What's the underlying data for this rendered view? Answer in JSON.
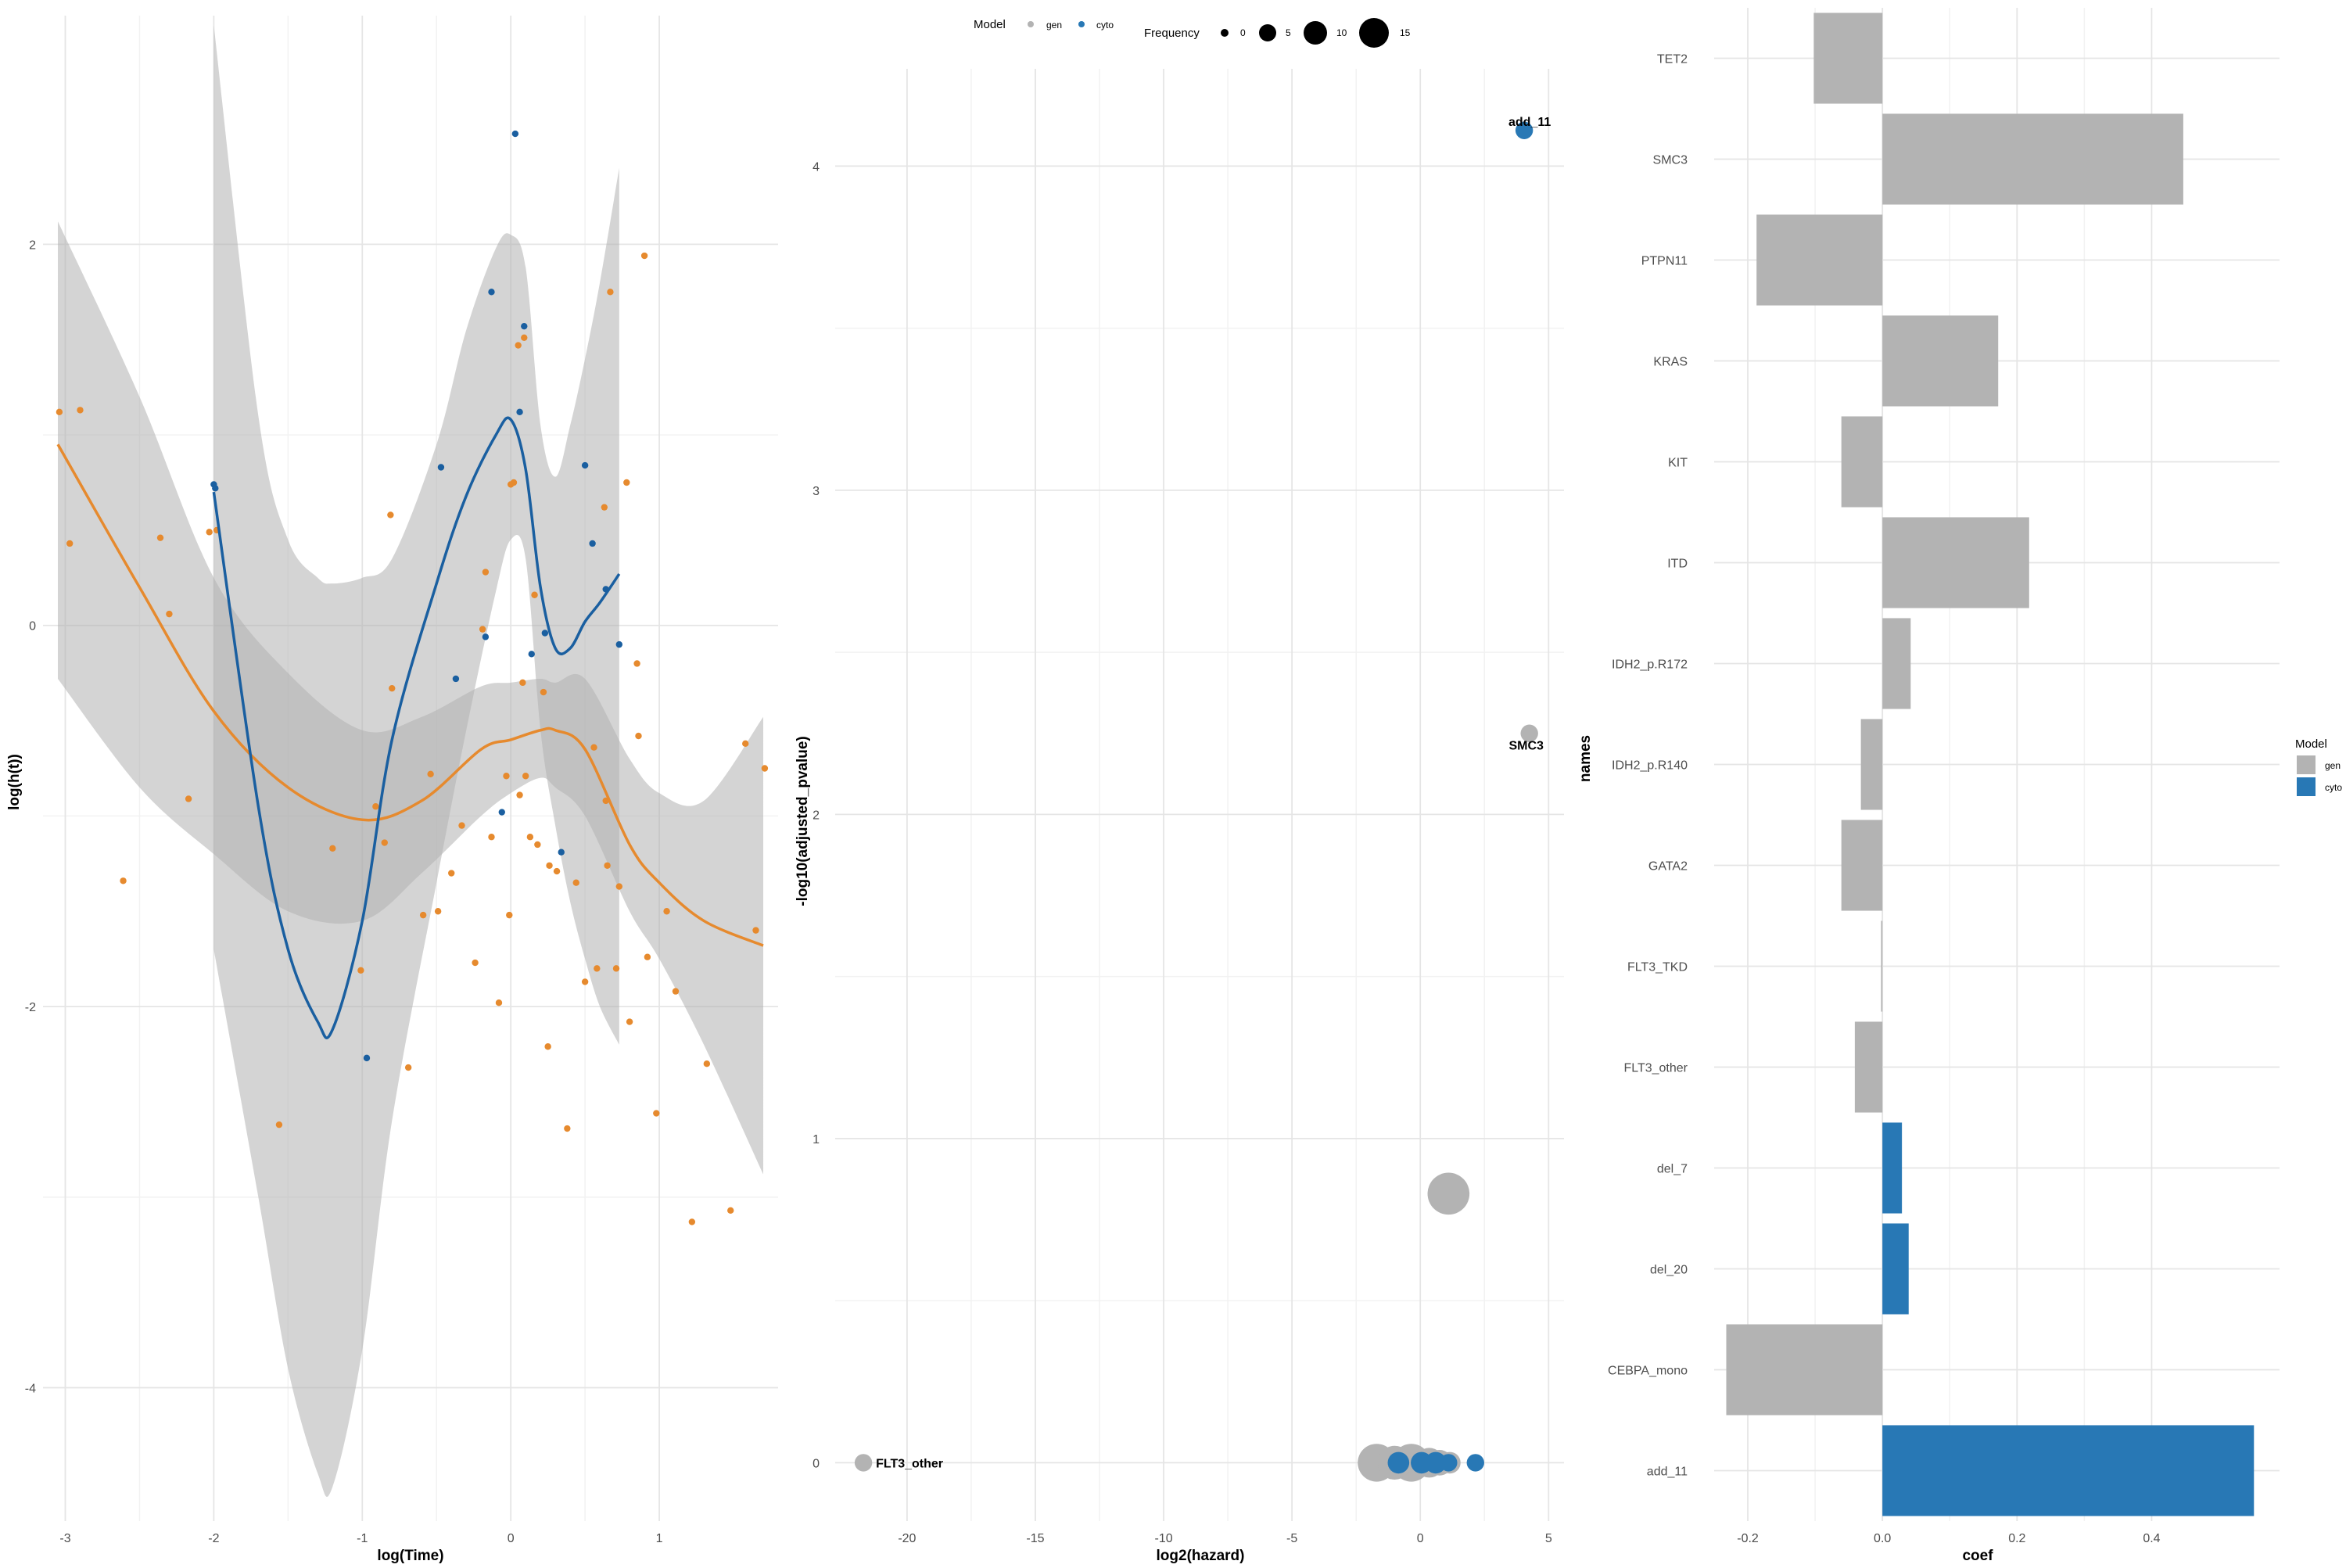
{
  "legend": {
    "title": "Model",
    "entries": [
      "gen",
      "cyto"
    ],
    "size_title": "Frequency",
    "size_labels": [
      "0",
      "5",
      "10",
      "15"
    ]
  },
  "colors": {
    "gen": "#b3b3b3",
    "cyto": "#2878b5",
    "cyto_line": "#1a5fa0",
    "orange": "#e68a2e",
    "band": "#b0b0b0"
  },
  "chart_data": [
    {
      "type": "scatter",
      "xlabel": "log(Time)",
      "ylabel": "log(h(t))",
      "xlim": [
        -3.15,
        1.8
      ],
      "ylim": [
        -4.7,
        3.2
      ],
      "xticks": [
        -3,
        -2,
        -1,
        0,
        1
      ],
      "yticks": [
        -4,
        -2,
        0,
        2
      ],
      "series": [
        {
          "name": "gen",
          "points": [
            [
              -3.04,
              1.12
            ],
            [
              -2.97,
              0.43
            ],
            [
              -2.9,
              1.13
            ],
            [
              -2.61,
              -1.34
            ],
            [
              -2.36,
              0.46
            ],
            [
              -2.3,
              0.06
            ],
            [
              -2.17,
              -0.91
            ],
            [
              -2.03,
              0.49
            ],
            [
              -1.98,
              0.5
            ],
            [
              -1.56,
              -2.62
            ],
            [
              -1.2,
              -1.17
            ],
            [
              -1.01,
              -1.81
            ],
            [
              -0.91,
              -0.95
            ],
            [
              -0.85,
              -1.14
            ],
            [
              -0.81,
              0.58
            ],
            [
              -0.8,
              -0.33
            ],
            [
              -0.69,
              -2.32
            ],
            [
              -0.59,
              -1.52
            ],
            [
              -0.54,
              -0.78
            ],
            [
              -0.49,
              -1.5
            ],
            [
              -0.4,
              -1.3
            ],
            [
              -0.33,
              -1.05
            ],
            [
              -0.24,
              -1.77
            ],
            [
              -0.19,
              -0.02
            ],
            [
              -0.17,
              0.28
            ],
            [
              -0.13,
              -1.11
            ],
            [
              -0.08,
              -1.98
            ],
            [
              -0.03,
              -0.79
            ],
            [
              -0.01,
              -1.52
            ],
            [
              0.0,
              0.74
            ],
            [
              0.02,
              0.75
            ],
            [
              0.05,
              1.47
            ],
            [
              0.06,
              -0.89
            ],
            [
              0.08,
              -0.3
            ],
            [
              0.09,
              1.51
            ],
            [
              0.1,
              -0.79
            ],
            [
              0.13,
              -1.11
            ],
            [
              0.16,
              0.16
            ],
            [
              0.18,
              -1.15
            ],
            [
              0.22,
              -0.35
            ],
            [
              0.25,
              -2.21
            ],
            [
              0.31,
              -1.29
            ],
            [
              0.38,
              -2.64
            ],
            [
              0.44,
              -1.35
            ],
            [
              0.5,
              -1.87
            ],
            [
              0.56,
              -0.64
            ],
            [
              0.58,
              -1.8
            ],
            [
              0.64,
              -0.92
            ],
            [
              0.65,
              -1.26
            ],
            [
              0.67,
              1.75
            ],
            [
              0.71,
              -1.8
            ],
            [
              0.73,
              -1.37
            ],
            [
              0.78,
              0.75
            ],
            [
              0.8,
              -2.08
            ],
            [
              0.85,
              -0.2
            ],
            [
              0.86,
              -0.58
            ],
            [
              0.92,
              -1.74
            ],
            [
              0.98,
              -2.56
            ],
            [
              1.05,
              -1.5
            ],
            [
              1.11,
              -1.92
            ],
            [
              1.22,
              -3.13
            ],
            [
              1.32,
              -2.3
            ],
            [
              1.48,
              -3.07
            ],
            [
              1.58,
              -0.62
            ],
            [
              1.65,
              -1.6
            ],
            [
              1.71,
              -0.75
            ],
            [
              0.9,
              1.94
            ],
            [
              0.63,
              0.62
            ],
            [
              0.26,
              -1.26
            ]
          ]
        },
        {
          "name": "cyto",
          "points": [
            [
              -2.0,
              0.74
            ],
            [
              -1.99,
              0.72
            ],
            [
              -0.97,
              -2.27
            ],
            [
              -0.47,
              0.83
            ],
            [
              -0.37,
              -0.28
            ],
            [
              -0.17,
              -0.06
            ],
            [
              -0.13,
              1.75
            ],
            [
              -0.06,
              -0.98
            ],
            [
              0.03,
              2.58
            ],
            [
              0.06,
              1.12
            ],
            [
              0.09,
              1.57
            ],
            [
              0.14,
              -0.15
            ],
            [
              0.23,
              -0.04
            ],
            [
              0.34,
              -1.19
            ],
            [
              0.5,
              0.84
            ],
            [
              0.55,
              0.43
            ],
            [
              0.64,
              0.19
            ],
            [
              0.73,
              -0.1
            ]
          ]
        }
      ],
      "fits": [
        {
          "name": "gen",
          "x": [
            -3.05,
            -2.5,
            -2.0,
            -1.5,
            -1.0,
            -0.6,
            -0.2,
            0.0,
            0.2,
            0.3,
            0.5,
            0.8,
            1.0,
            1.3,
            1.7
          ],
          "y": [
            0.95,
            0.2,
            -0.45,
            -0.85,
            -1.02,
            -0.92,
            -0.65,
            -0.6,
            -0.55,
            -0.55,
            -0.65,
            -1.15,
            -1.35,
            -1.55,
            -1.68
          ],
          "lo": [
            -0.28,
            -0.85,
            -1.2,
            -1.5,
            -1.55,
            -1.3,
            -1.0,
            -0.88,
            -0.8,
            -0.85,
            -1.0,
            -1.5,
            -1.75,
            -2.2,
            -2.88
          ],
          "hi": [
            2.12,
            1.2,
            0.25,
            -0.25,
            -0.55,
            -0.48,
            -0.32,
            -0.3,
            -0.28,
            -0.3,
            -0.28,
            -0.7,
            -0.88,
            -0.92,
            -0.48
          ]
        },
        {
          "name": "cyto",
          "x": [
            -2.0,
            -1.7,
            -1.5,
            -1.3,
            -1.2,
            -1.0,
            -0.8,
            -0.5,
            -0.3,
            -0.1,
            0.0,
            0.1,
            0.2,
            0.3,
            0.4,
            0.5,
            0.6,
            0.73
          ],
          "y": [
            0.7,
            -0.95,
            -1.7,
            -2.08,
            -2.12,
            -1.55,
            -0.6,
            0.22,
            0.68,
            1.0,
            1.08,
            0.82,
            0.2,
            -0.12,
            -0.12,
            0.02,
            0.12,
            0.27
          ],
          "lo": [
            -1.7,
            -3.0,
            -3.9,
            -4.45,
            -4.52,
            -3.8,
            -2.6,
            -1.35,
            -0.55,
            0.18,
            0.45,
            0.35,
            -0.55,
            -1.05,
            -1.45,
            -1.75,
            -2.0,
            -2.2
          ],
          "hi": [
            3.15,
            1.1,
            0.45,
            0.25,
            0.22,
            0.25,
            0.35,
            0.95,
            1.55,
            1.98,
            2.05,
            1.88,
            1.05,
            0.78,
            1.05,
            1.4,
            1.8,
            2.4
          ]
        }
      ]
    },
    {
      "type": "scatter",
      "xlabel": "log2(hazard)",
      "ylabel": "-log10(adjusted_pvalue)",
      "xlim": [
        -22.8,
        5.6
      ],
      "ylim": [
        -0.18,
        4.3
      ],
      "xticks": [
        -20,
        -15,
        -10,
        -5,
        0,
        5
      ],
      "yticks": [
        0,
        1,
        2,
        3,
        4
      ],
      "points": [
        {
          "x": 4.05,
          "y": 4.11,
          "model": "cyto",
          "size": 2,
          "label": "add_11"
        },
        {
          "x": 4.25,
          "y": 2.25,
          "model": "gen",
          "size": 2,
          "label": "SMC3"
        },
        {
          "x": 1.1,
          "y": 0.83,
          "model": "gen",
          "size": 8,
          "label": ""
        },
        {
          "x": -21.7,
          "y": 0.0,
          "model": "gen",
          "size": 2,
          "label": "FLT3_other"
        },
        {
          "x": -1.7,
          "y": 0.0,
          "model": "gen",
          "size": 7,
          "label": ""
        },
        {
          "x": -1.0,
          "y": 0.0,
          "model": "gen",
          "size": 6,
          "label": ""
        },
        {
          "x": -0.35,
          "y": 0.0,
          "model": "gen",
          "size": 7,
          "label": ""
        },
        {
          "x": 0.35,
          "y": 0.0,
          "model": "gen",
          "size": 5,
          "label": ""
        },
        {
          "x": 0.75,
          "y": 0.0,
          "model": "gen",
          "size": 4,
          "label": ""
        },
        {
          "x": 1.15,
          "y": 0.0,
          "model": "gen",
          "size": 3,
          "label": ""
        },
        {
          "x": -0.85,
          "y": 0.0,
          "model": "cyto",
          "size": 3,
          "label": ""
        },
        {
          "x": 0.05,
          "y": 0.0,
          "model": "cyto",
          "size": 3,
          "label": ""
        },
        {
          "x": 0.6,
          "y": 0.0,
          "model": "cyto",
          "size": 3,
          "label": ""
        },
        {
          "x": 1.1,
          "y": 0.0,
          "model": "cyto",
          "size": 2,
          "label": ""
        },
        {
          "x": 2.15,
          "y": 0.0,
          "model": "cyto",
          "size": 2,
          "label": ""
        }
      ]
    },
    {
      "type": "bar",
      "orientation": "horizontal",
      "xlabel": "coef",
      "ylabel": "names",
      "xlim": [
        -0.25,
        0.59
      ],
      "xticks": [
        -0.2,
        0.0,
        0.2,
        0.4
      ],
      "xtick_labels": [
        "-0.2",
        "0.0",
        "0.2",
        "0.4"
      ],
      "categories": [
        "TET2",
        "SMC3",
        "PTPN11",
        "KRAS",
        "KIT",
        "ITD",
        "IDH2_p.R172",
        "IDH2_p.R140",
        "GATA2",
        "FLT3_TKD",
        "FLT3_other",
        "del_7",
        "del_20",
        "CEBPA_mono",
        "add_11"
      ],
      "values": [
        -0.102,
        0.447,
        -0.187,
        0.172,
        -0.061,
        0.218,
        0.042,
        -0.032,
        -0.061,
        -0.002,
        -0.041,
        0.029,
        0.039,
        -0.232,
        0.552
      ],
      "model": [
        "gen",
        "gen",
        "gen",
        "gen",
        "gen",
        "gen",
        "gen",
        "gen",
        "gen",
        "gen",
        "gen",
        "cyto",
        "cyto",
        "gen",
        "cyto"
      ]
    }
  ]
}
